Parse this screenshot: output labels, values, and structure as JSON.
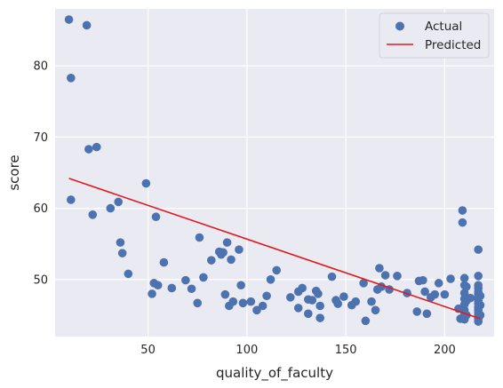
{
  "chart_data": {
    "type": "scatter",
    "title": "",
    "xlabel": "quality_of_faculty",
    "ylabel": "score",
    "xlim": [
      3,
      225
    ],
    "ylim": [
      42,
      88
    ],
    "xticks": [
      50,
      100,
      150,
      200
    ],
    "yticks": [
      50,
      60,
      70,
      80
    ],
    "grid": true,
    "legend": "top-right",
    "colors": {
      "background": "#eaeaf2",
      "grid": "#ffffff",
      "points": "#4c72b0",
      "line": "#e31a1c"
    },
    "series": [
      {
        "name": "Actual",
        "kind": "scatter",
        "points": [
          [
            10,
            86.5
          ],
          [
            19,
            85.7
          ],
          [
            11,
            78.3
          ],
          [
            20,
            68.3
          ],
          [
            24,
            68.6
          ],
          [
            11,
            61.2
          ],
          [
            22,
            59.1
          ],
          [
            31,
            60.0
          ],
          [
            35,
            60.9
          ],
          [
            49,
            63.5
          ],
          [
            54,
            58.8
          ],
          [
            36,
            55.2
          ],
          [
            37,
            53.7
          ],
          [
            40,
            50.8
          ],
          [
            58,
            52.4
          ],
          [
            52,
            48.0
          ],
          [
            53,
            49.5
          ],
          [
            55,
            49.2
          ],
          [
            62,
            48.8
          ],
          [
            69,
            49.9
          ],
          [
            72,
            48.7
          ],
          [
            75,
            46.7
          ],
          [
            76,
            55.9
          ],
          [
            78,
            50.3
          ],
          [
            82,
            52.7
          ],
          [
            86,
            53.9
          ],
          [
            87,
            53.5
          ],
          [
            88,
            53.8
          ],
          [
            89,
            47.9
          ],
          [
            90,
            55.2
          ],
          [
            91,
            46.3
          ],
          [
            92,
            52.8
          ],
          [
            93,
            46.9
          ],
          [
            96,
            54.2
          ],
          [
            97,
            49.2
          ],
          [
            98,
            46.7
          ],
          [
            102,
            46.9
          ],
          [
            105,
            45.7
          ],
          [
            108,
            46.3
          ],
          [
            110,
            47.7
          ],
          [
            112,
            50.0
          ],
          [
            115,
            51.3
          ],
          [
            122,
            47.5
          ],
          [
            126,
            48.3
          ],
          [
            126,
            46.0
          ],
          [
            128,
            48.8
          ],
          [
            131,
            47.2
          ],
          [
            131,
            45.2
          ],
          [
            133,
            47.1
          ],
          [
            135,
            48.4
          ],
          [
            136,
            48.0
          ],
          [
            137,
            44.6
          ],
          [
            137,
            46.3
          ],
          [
            143,
            50.4
          ],
          [
            145,
            47.1
          ],
          [
            146,
            46.6
          ],
          [
            149,
            47.6
          ],
          [
            153,
            46.4
          ],
          [
            155,
            46.9
          ],
          [
            159,
            49.5
          ],
          [
            160,
            44.2
          ],
          [
            163,
            46.9
          ],
          [
            165,
            45.7
          ],
          [
            166,
            48.6
          ],
          [
            167,
            51.6
          ],
          [
            168,
            49.0
          ],
          [
            170,
            50.6
          ],
          [
            172,
            48.6
          ],
          [
            176,
            50.5
          ],
          [
            181,
            48.1
          ],
          [
            186,
            45.5
          ],
          [
            187,
            49.8
          ],
          [
            189,
            49.9
          ],
          [
            190,
            48.3
          ],
          [
            191,
            45.2
          ],
          [
            193,
            47.5
          ],
          [
            195,
            47.9
          ],
          [
            197,
            49.5
          ],
          [
            200,
            47.9
          ],
          [
            203,
            50.1
          ],
          [
            207,
            45.9
          ],
          [
            208,
            44.5
          ],
          [
            209,
            46.0
          ],
          [
            209,
            59.7
          ],
          [
            209,
            58.0
          ],
          [
            210,
            50.2
          ],
          [
            210,
            49.2
          ],
          [
            210,
            48.1
          ],
          [
            210,
            47.3
          ],
          [
            210,
            46.5
          ],
          [
            210,
            45.7
          ],
          [
            210,
            45.2
          ],
          [
            210,
            44.8
          ],
          [
            210,
            44.4
          ],
          [
            211,
            49.0
          ],
          [
            211,
            47.0
          ],
          [
            211,
            45.0
          ],
          [
            213,
            47.4
          ],
          [
            217,
            54.2
          ],
          [
            217,
            50.5
          ],
          [
            217,
            49.2
          ],
          [
            217,
            48.8
          ],
          [
            217,
            48.3
          ],
          [
            217,
            47.9
          ],
          [
            217,
            47.4
          ],
          [
            217,
            47.0
          ],
          [
            217,
            46.6
          ],
          [
            217,
            46.1
          ],
          [
            217,
            45.7
          ],
          [
            217,
            45.3
          ],
          [
            217,
            44.9
          ],
          [
            217,
            44.5
          ],
          [
            217,
            44.1
          ],
          [
            218,
            47.7
          ],
          [
            218,
            46.4
          ],
          [
            218,
            45.0
          ]
        ]
      },
      {
        "name": "Predicted",
        "kind": "line",
        "points": [
          [
            10,
            64.2
          ],
          [
            218,
            44.5
          ]
        ]
      }
    ]
  }
}
